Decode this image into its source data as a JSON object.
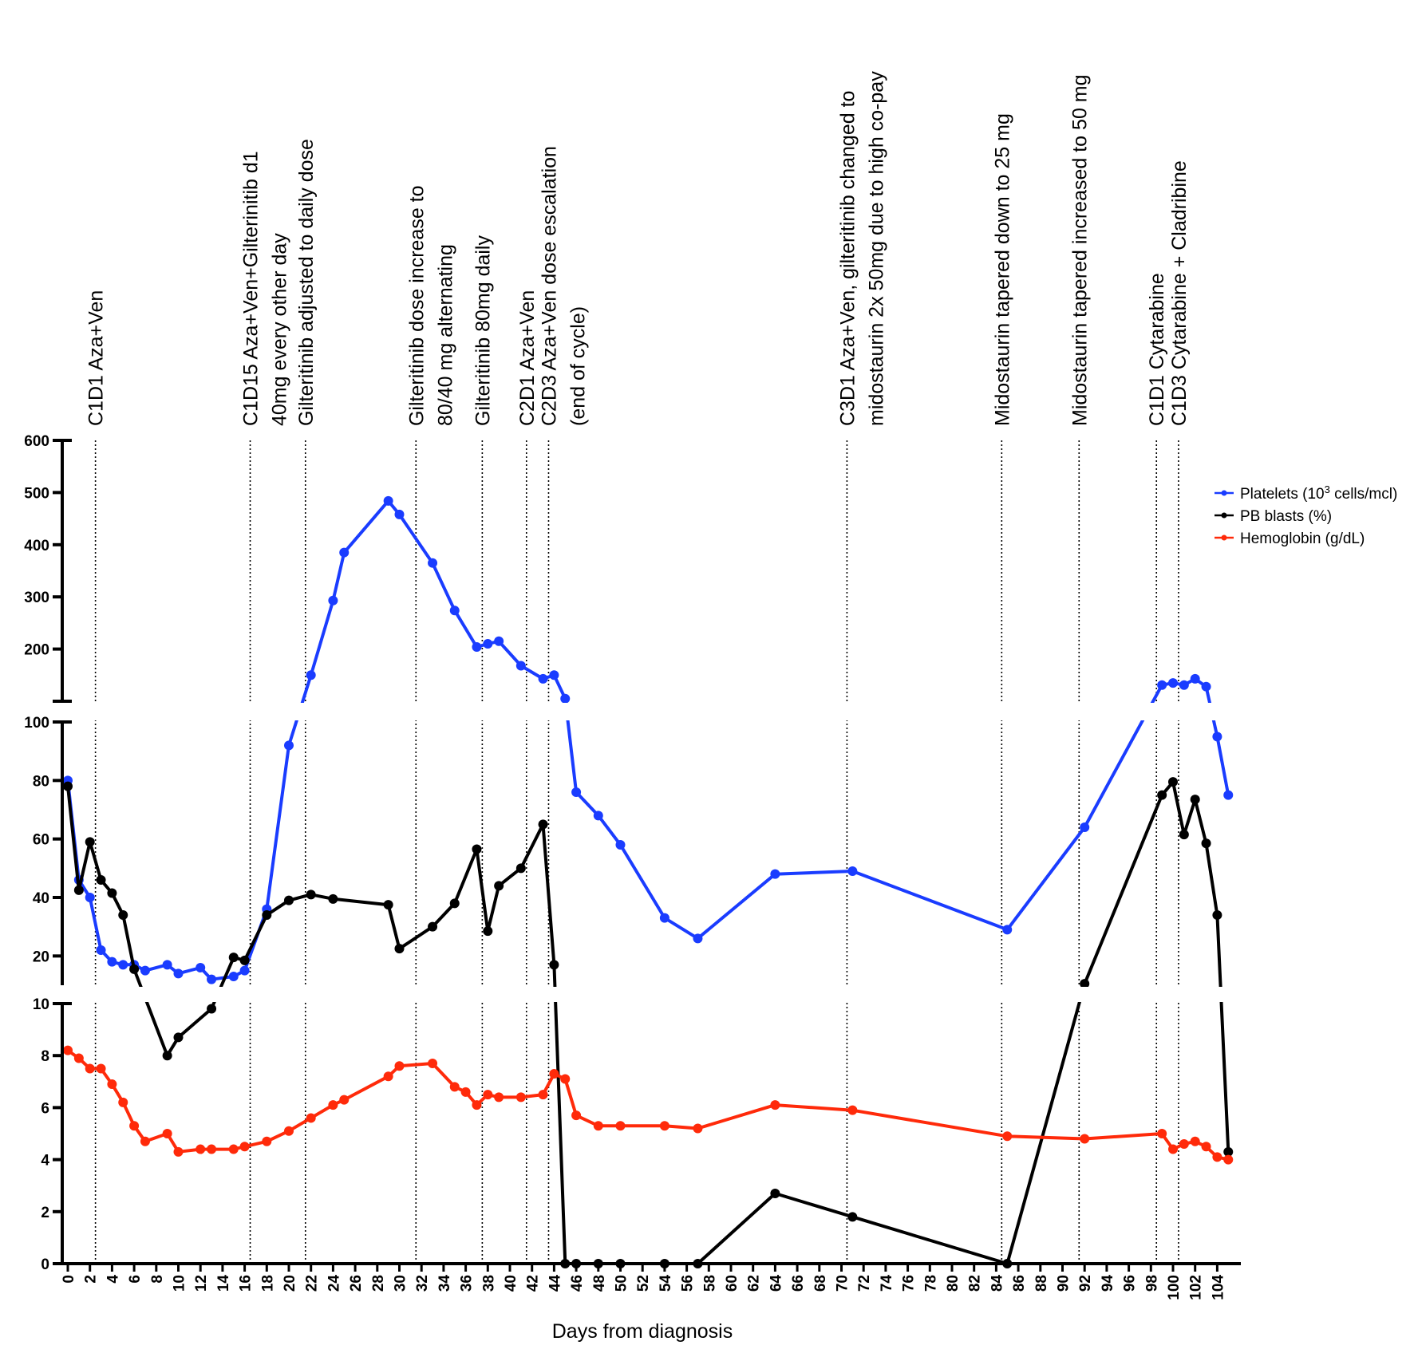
{
  "chart_data": {
    "type": "line",
    "title": "",
    "xlabel": "Days from diagnosis",
    "ylabel": "",
    "xlim": [
      0,
      105
    ],
    "x_ticks": [
      0,
      2,
      4,
      6,
      8,
      10,
      12,
      14,
      16,
      18,
      20,
      22,
      24,
      26,
      28,
      30,
      32,
      34,
      36,
      38,
      40,
      42,
      44,
      46,
      48,
      50,
      52,
      54,
      56,
      58,
      60,
      62,
      64,
      66,
      68,
      70,
      72,
      74,
      76,
      78,
      80,
      82,
      84,
      86,
      88,
      90,
      92,
      94,
      96,
      98,
      100,
      102,
      104
    ],
    "y_axis_broken": true,
    "y_segments": [
      {
        "range": [
          0,
          10
        ],
        "ticks": [
          0,
          2,
          4,
          6,
          8,
          10
        ]
      },
      {
        "range": [
          10,
          100
        ],
        "ticks": [
          20,
          40,
          60,
          80,
          100
        ]
      },
      {
        "range": [
          100,
          600
        ],
        "ticks": [
          100,
          200,
          300,
          400,
          500,
          600
        ]
      }
    ],
    "grid": false,
    "legend_position": "right",
    "series": [
      {
        "name": "Platelets (10³ cells/mcl)",
        "name_main": "Platelets (10",
        "name_sup": "3",
        "name_tail": " cells/mcl)",
        "color": "#1a3cff",
        "x": [
          0,
          1,
          2,
          3,
          4,
          5,
          6,
          7,
          9,
          10,
          12,
          13,
          15,
          16,
          18,
          20,
          22,
          24,
          25,
          29,
          30,
          33,
          35,
          37,
          38,
          39,
          41,
          43,
          44,
          45,
          46,
          48,
          50,
          54,
          57,
          64,
          71,
          85,
          92,
          99,
          100,
          101,
          102,
          103,
          104,
          105
        ],
        "y": [
          80,
          46,
          40,
          22,
          18,
          17,
          17,
          15,
          17,
          14,
          16,
          12,
          13,
          15,
          36,
          92,
          150,
          293,
          385,
          484,
          458,
          365,
          274,
          204,
          210,
          215,
          168,
          143,
          150,
          105,
          76,
          68,
          58,
          33,
          26,
          48,
          49,
          29,
          64,
          131,
          135,
          131,
          143,
          128,
          95,
          75
        ]
      },
      {
        "name": "PB blasts (%)",
        "color": "#000000",
        "x": [
          0,
          1,
          2,
          3,
          4,
          5,
          6,
          9,
          10,
          13,
          15,
          16,
          18,
          20,
          22,
          24,
          29,
          30,
          33,
          35,
          37,
          38,
          39,
          41,
          43,
          44,
          45,
          46,
          48,
          50,
          54,
          57,
          64,
          71,
          85,
          92,
          99,
          100,
          101,
          102,
          103,
          104,
          105
        ],
        "y": [
          78,
          42.5,
          59,
          46,
          41.5,
          34,
          15.5,
          8,
          8.7,
          9.8,
          19.5,
          18.5,
          34,
          39,
          41,
          39.5,
          37.5,
          22.5,
          30,
          38,
          56.5,
          28.5,
          44,
          50,
          65,
          17,
          0,
          0,
          0,
          0,
          0,
          0,
          2.7,
          1.8,
          0,
          10.5,
          75,
          79.5,
          61.5,
          73.5,
          58.5,
          34,
          4.3
        ]
      },
      {
        "name": "Hemoglobin (g/dL)",
        "color": "#ff2a0a",
        "x": [
          0,
          1,
          2,
          3,
          4,
          5,
          6,
          7,
          9,
          10,
          12,
          13,
          15,
          16,
          18,
          20,
          22,
          24,
          25,
          29,
          30,
          33,
          35,
          36,
          37,
          38,
          39,
          41,
          43,
          44,
          45,
          46,
          48,
          50,
          54,
          57,
          64,
          71,
          85,
          92,
          99,
          100,
          101,
          102,
          103,
          104,
          105
        ],
        "y": [
          8.2,
          7.9,
          7.5,
          7.5,
          6.9,
          6.2,
          5.3,
          4.7,
          5.0,
          4.3,
          4.4,
          4.4,
          4.4,
          4.5,
          4.7,
          5.1,
          5.6,
          6.1,
          6.3,
          7.2,
          7.6,
          7.7,
          6.8,
          6.6,
          6.1,
          6.5,
          6.4,
          6.4,
          6.5,
          7.3,
          7.1,
          5.7,
          5.3,
          5.3,
          5.3,
          5.2,
          6.1,
          5.9,
          4.9,
          4.8,
          5.0,
          4.4,
          4.6,
          4.7,
          4.5,
          4.1,
          4.0
        ]
      }
    ],
    "annotations": [
      {
        "day": 2.5,
        "lines": [
          "C1D1 Aza+Ven"
        ]
      },
      {
        "day": 16.5,
        "lines": [
          "C1D15 Aza+Ven+Gilterinitib d1",
          "40mg every other day"
        ]
      },
      {
        "day": 21.5,
        "lines": [
          "Gilteritinib adjusted to daily dose"
        ]
      },
      {
        "day": 31.5,
        "lines": [
          "Gilteritinib dose increase to",
          "80/40 mg alternating"
        ]
      },
      {
        "day": 37.5,
        "lines": [
          "Gilteritinib 80mg daily"
        ]
      },
      {
        "day": 41.5,
        "lines": [
          "C2D1 Aza+Ven"
        ]
      },
      {
        "day": 43.5,
        "lines": [
          "C2D3 Aza+Ven dose escalation",
          "(end of cycle)"
        ]
      },
      {
        "day": 70.5,
        "lines": [
          "C3D1 Aza+Ven, gilteritinib changed to",
          "midostaurin 2x 50mg due to high co-pay"
        ]
      },
      {
        "day": 84.5,
        "lines": [
          "Midostaurin tapered down to 25 mg"
        ]
      },
      {
        "day": 91.5,
        "lines": [
          "Midostaurin tapered increased to 50 mg"
        ]
      },
      {
        "day": 98.5,
        "lines": [
          "C1D1 Cytarabine"
        ]
      },
      {
        "day": 100.5,
        "lines": [
          "C1D3 Cytarabine + Cladribine"
        ]
      }
    ]
  }
}
